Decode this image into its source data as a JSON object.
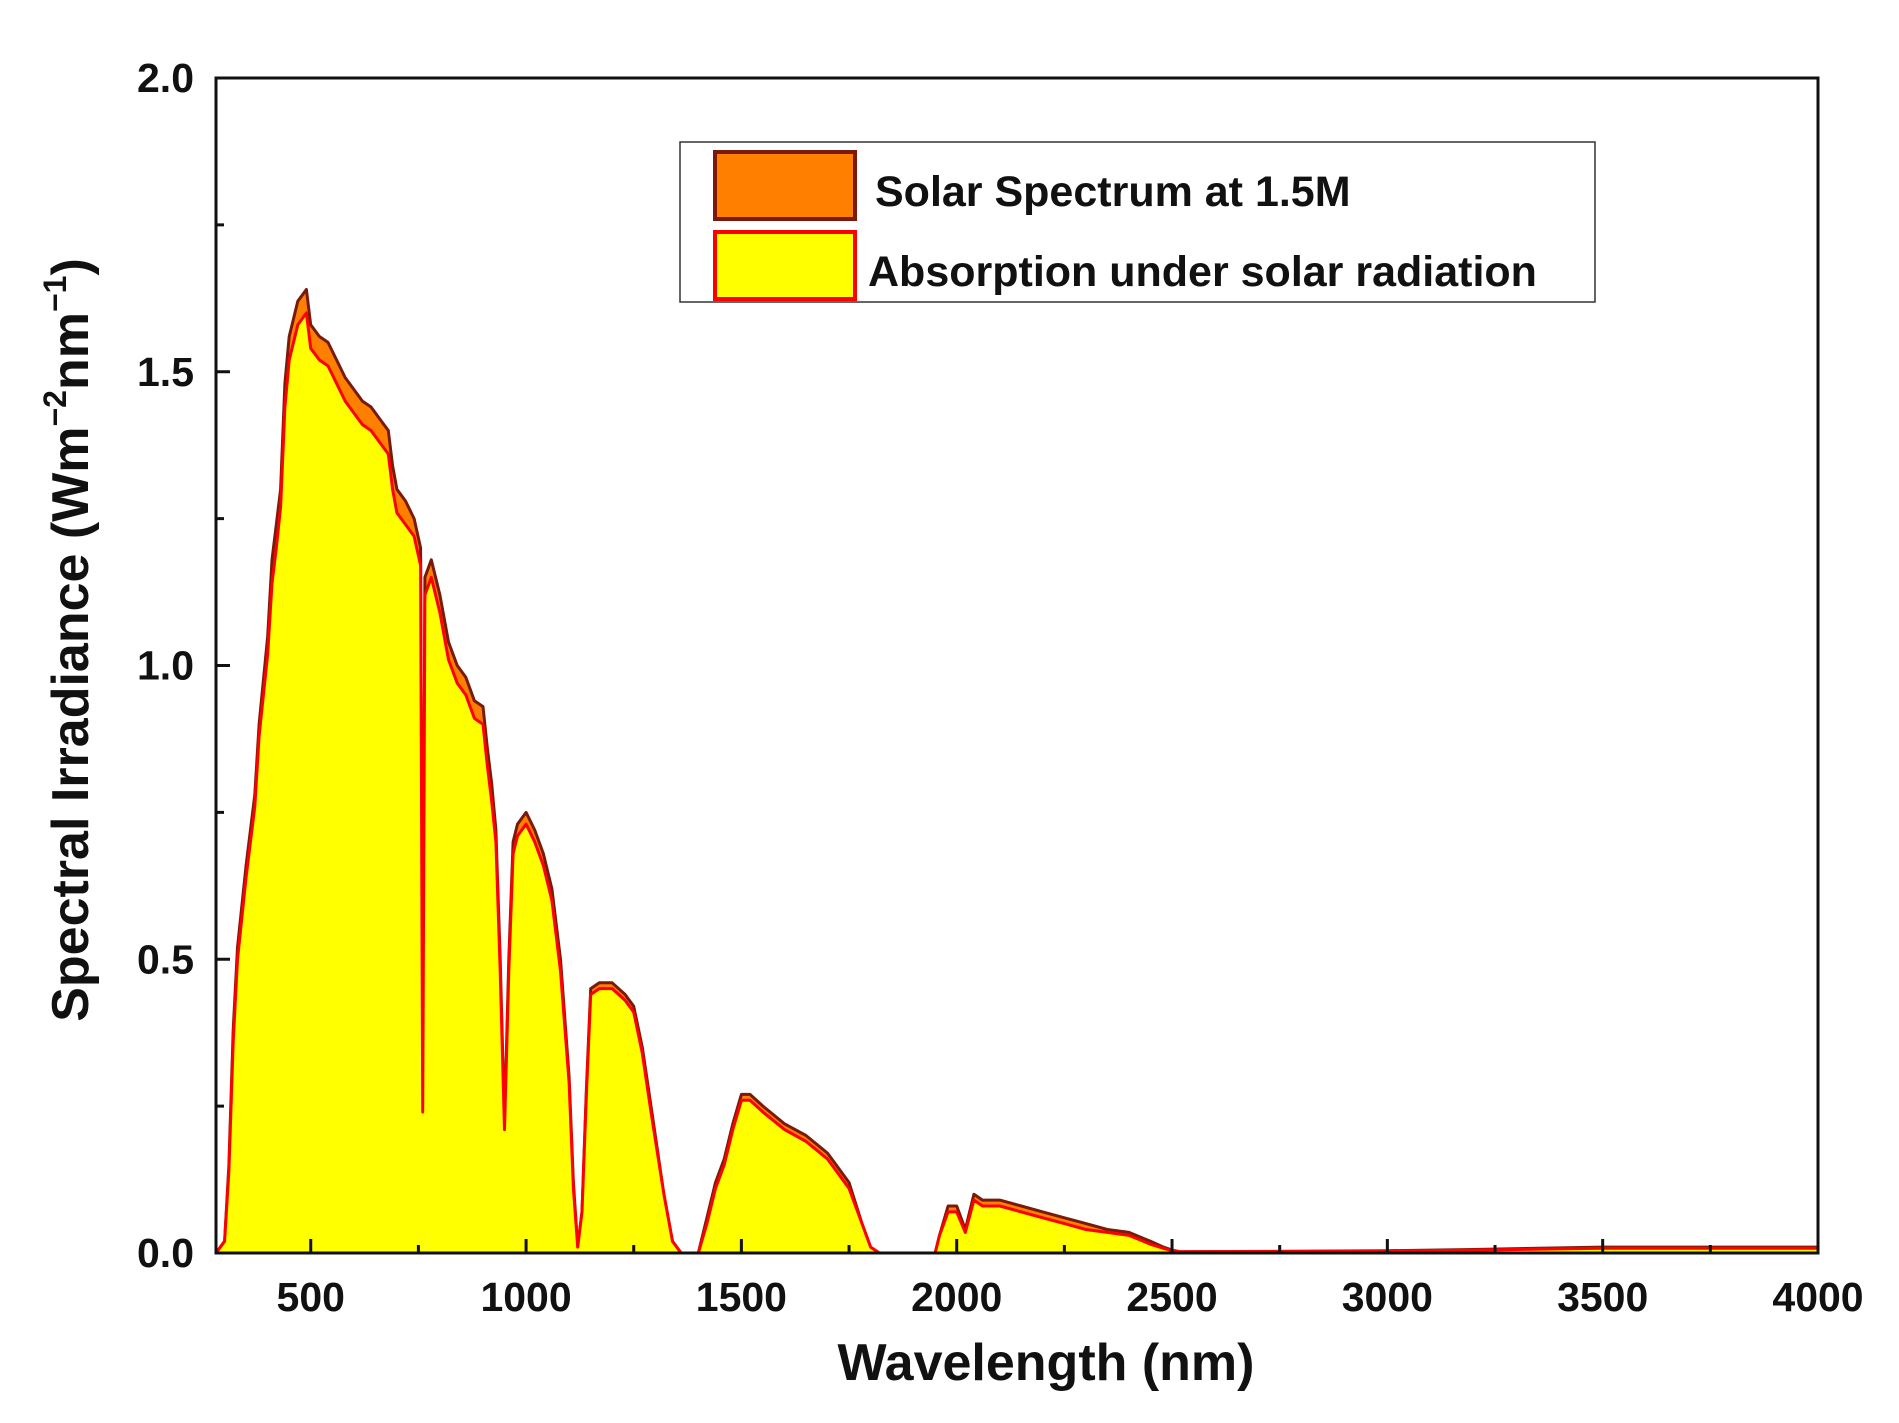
{
  "chart_data": {
    "type": "area",
    "xlabel": "Wavelength (nm)",
    "ylabel": "Spectral Irradiance (Wm",
    "ylabel_sup1": "−2",
    "ylabel_mid": "nm",
    "ylabel_sup2": "−1",
    "ylabel_end": ")",
    "xlim": [
      280,
      4000
    ],
    "ylim": [
      0,
      2.0
    ],
    "x_ticks": [
      500,
      1000,
      1500,
      2000,
      2500,
      3000,
      3500,
      4000
    ],
    "x_tick_labels": [
      "500",
      "1000",
      "1500",
      "2000",
      "2500",
      "3000",
      "3500",
      "4000"
    ],
    "y_ticks": [
      0,
      0.5,
      1.0,
      1.5,
      2.0
    ],
    "y_tick_labels": [
      "0.0",
      "0.5",
      "1.0",
      "1.5",
      "2.0"
    ],
    "grid": false,
    "legend_position": "top-right",
    "series": [
      {
        "name": "Solar Spectrum at 1.5M",
        "fill": "#ff8000",
        "stroke": "#7a1a0a",
        "x": [
          280,
          300,
          310,
          320,
          330,
          350,
          370,
          380,
          400,
          410,
          420,
          430,
          440,
          450,
          470,
          490,
          500,
          520,
          540,
          560,
          580,
          600,
          620,
          640,
          660,
          680,
          690,
          700,
          720,
          740,
          755,
          760,
          765,
          780,
          800,
          820,
          840,
          860,
          880,
          900,
          910,
          920,
          930,
          940,
          950,
          960,
          970,
          980,
          1000,
          1020,
          1040,
          1060,
          1080,
          1100,
          1110,
          1120,
          1130,
          1140,
          1150,
          1170,
          1200,
          1230,
          1250,
          1270,
          1290,
          1320,
          1340,
          1360,
          1370,
          1380,
          1400,
          1420,
          1440,
          1460,
          1480,
          1500,
          1520,
          1550,
          1600,
          1650,
          1700,
          1750,
          1780,
          1800,
          1820,
          1840,
          1900,
          1950,
          1960,
          1980,
          2000,
          2020,
          2040,
          2060,
          2080,
          2100,
          2150,
          2200,
          2250,
          2300,
          2350,
          2400,
          2450,
          2480,
          2500,
          2520,
          3000,
          3200,
          3500,
          4000
        ],
        "y": [
          0.0,
          0.02,
          0.15,
          0.38,
          0.52,
          0.66,
          0.78,
          0.9,
          1.05,
          1.18,
          1.24,
          1.3,
          1.48,
          1.56,
          1.62,
          1.64,
          1.58,
          1.56,
          1.55,
          1.52,
          1.49,
          1.47,
          1.45,
          1.44,
          1.42,
          1.4,
          1.34,
          1.3,
          1.28,
          1.25,
          1.2,
          0.25,
          1.15,
          1.18,
          1.12,
          1.04,
          1.0,
          0.98,
          0.94,
          0.93,
          0.86,
          0.8,
          0.72,
          0.5,
          0.22,
          0.5,
          0.7,
          0.73,
          0.75,
          0.72,
          0.68,
          0.62,
          0.5,
          0.3,
          0.12,
          0.01,
          0.07,
          0.28,
          0.45,
          0.46,
          0.46,
          0.44,
          0.42,
          0.35,
          0.25,
          0.1,
          0.02,
          0.0,
          0.0,
          0.0,
          0.0,
          0.06,
          0.12,
          0.16,
          0.22,
          0.27,
          0.27,
          0.25,
          0.22,
          0.2,
          0.17,
          0.12,
          0.05,
          0.01,
          0.0,
          0.0,
          0.0,
          0.0,
          0.03,
          0.08,
          0.08,
          0.04,
          0.1,
          0.09,
          0.09,
          0.09,
          0.08,
          0.07,
          0.06,
          0.05,
          0.04,
          0.035,
          0.02,
          0.01,
          0.005,
          0.002,
          0.004,
          0.006,
          0.01,
          0.01
        ]
      },
      {
        "name": "Absorption under solar radiation",
        "fill": "#ffff00",
        "stroke": "#ff0000",
        "x": [
          280,
          300,
          310,
          320,
          330,
          350,
          370,
          380,
          400,
          410,
          420,
          430,
          440,
          450,
          470,
          490,
          500,
          520,
          540,
          560,
          580,
          600,
          620,
          640,
          660,
          680,
          690,
          700,
          720,
          740,
          755,
          760,
          765,
          780,
          800,
          820,
          840,
          860,
          880,
          900,
          910,
          920,
          930,
          940,
          950,
          960,
          970,
          980,
          1000,
          1020,
          1040,
          1060,
          1080,
          1100,
          1110,
          1120,
          1130,
          1140,
          1150,
          1170,
          1200,
          1230,
          1250,
          1270,
          1290,
          1320,
          1340,
          1360,
          1370,
          1380,
          1400,
          1420,
          1440,
          1460,
          1480,
          1500,
          1520,
          1550,
          1600,
          1650,
          1700,
          1750,
          1780,
          1800,
          1820,
          1840,
          1900,
          1950,
          1960,
          1980,
          2000,
          2020,
          2040,
          2060,
          2080,
          2100,
          2150,
          2200,
          2250,
          2300,
          2350,
          2400,
          2450,
          2480,
          2500,
          2520,
          3000,
          3200,
          3500,
          4000
        ],
        "y": [
          0.0,
          0.02,
          0.14,
          0.36,
          0.5,
          0.64,
          0.76,
          0.88,
          1.02,
          1.14,
          1.2,
          1.27,
          1.44,
          1.52,
          1.58,
          1.6,
          1.54,
          1.52,
          1.51,
          1.48,
          1.45,
          1.43,
          1.41,
          1.4,
          1.38,
          1.36,
          1.3,
          1.26,
          1.24,
          1.22,
          1.17,
          0.24,
          1.12,
          1.15,
          1.09,
          1.01,
          0.97,
          0.95,
          0.91,
          0.9,
          0.83,
          0.77,
          0.7,
          0.48,
          0.21,
          0.48,
          0.68,
          0.71,
          0.73,
          0.7,
          0.66,
          0.6,
          0.48,
          0.29,
          0.11,
          0.01,
          0.07,
          0.27,
          0.44,
          0.45,
          0.45,
          0.43,
          0.41,
          0.34,
          0.24,
          0.1,
          0.02,
          0.0,
          0.0,
          0.0,
          0.0,
          0.05,
          0.11,
          0.15,
          0.21,
          0.26,
          0.26,
          0.24,
          0.21,
          0.19,
          0.16,
          0.11,
          0.05,
          0.01,
          0.0,
          0.0,
          0.0,
          0.0,
          0.03,
          0.07,
          0.07,
          0.035,
          0.09,
          0.08,
          0.08,
          0.08,
          0.07,
          0.06,
          0.05,
          0.04,
          0.035,
          0.03,
          0.015,
          0.008,
          0.004,
          0.002,
          0.003,
          0.005,
          0.008,
          0.008
        ]
      }
    ]
  }
}
